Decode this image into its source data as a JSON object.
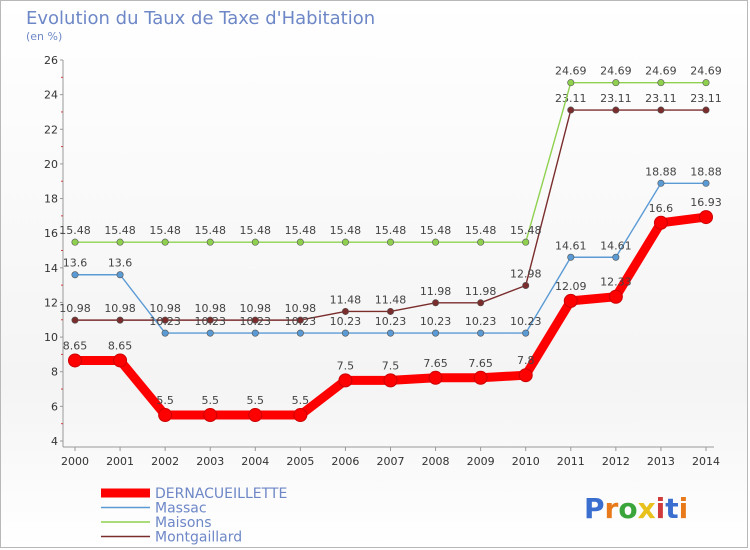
{
  "header": {
    "title": "Evolution du Taux de Taxe d'Habitation",
    "subtitle": "(en %)"
  },
  "logo": {
    "letters": [
      {
        "char": "P",
        "color": "#3a6fd0"
      },
      {
        "char": "r",
        "color": "#e87a1c"
      },
      {
        "char": "o",
        "color": "#3aa53a"
      },
      {
        "char": "x",
        "color": "#e8c11c"
      },
      {
        "char": "i",
        "color": "#d03a3a"
      },
      {
        "char": "t",
        "color": "#3a6fd0"
      },
      {
        "char": "i",
        "color": "#e87a1c"
      }
    ]
  },
  "chart_data": {
    "type": "line",
    "x": [
      "2000",
      "2001",
      "2002",
      "2003",
      "2004",
      "2005",
      "2006",
      "2007",
      "2008",
      "2009",
      "2010",
      "2011",
      "2012",
      "2013",
      "2014"
    ],
    "ylim": [
      4,
      26
    ],
    "yticks": [
      4,
      6,
      8,
      10,
      12,
      14,
      16,
      18,
      20,
      22,
      24,
      26
    ],
    "grid": false,
    "legend_position": "bottom-left",
    "series": [
      {
        "name": "DERNACUEILLETTE",
        "color": "#ff0000",
        "values": [
          8.65,
          8.65,
          5.5,
          5.5,
          5.5,
          5.5,
          7.5,
          7.5,
          7.65,
          7.65,
          7.8,
          12.09,
          12.33,
          16.6,
          16.93
        ],
        "labels": [
          "8.65",
          "8.65",
          "5.5",
          "5.5",
          "5.5",
          "5.5",
          "7.5",
          "7.5",
          "7.65",
          "7.65",
          "7.8",
          "12.09",
          "12.33",
          "16.6",
          "16.93"
        ]
      },
      {
        "name": "Massac",
        "color": "#5b9bd5",
        "values": [
          13.6,
          13.6,
          10.23,
          10.23,
          10.23,
          10.23,
          10.23,
          10.23,
          10.23,
          10.23,
          10.23,
          14.61,
          14.61,
          18.88,
          18.88
        ],
        "labels": [
          "13.6",
          "13.6",
          "10.23",
          "10.23",
          "10.23",
          "10.23",
          "10.23",
          "10.23",
          "10.23",
          "10.23",
          "10.23",
          "14.61",
          "14.61",
          "18.88",
          "18.88"
        ]
      },
      {
        "name": "Maisons",
        "color": "#8fd14f",
        "values": [
          15.48,
          15.48,
          15.48,
          15.48,
          15.48,
          15.48,
          15.48,
          15.48,
          15.48,
          15.48,
          15.48,
          24.69,
          24.69,
          24.69,
          24.69
        ],
        "labels": [
          "15.48",
          "15.48",
          "15.48",
          "15.48",
          "15.48",
          "15.48",
          "15.48",
          "15.48",
          "15.48",
          "15.48",
          "15.48",
          "24.69",
          "24.69",
          "24.69",
          "24.69"
        ]
      },
      {
        "name": "Montgaillard",
        "color": "#7b2d2d",
        "values": [
          10.98,
          10.98,
          10.98,
          10.98,
          10.98,
          10.98,
          11.48,
          11.48,
          11.98,
          11.98,
          12.98,
          23.11,
          23.11,
          23.11,
          23.11
        ],
        "labels": [
          "10.98",
          "10.98",
          "10.98",
          "10.98",
          "10.98",
          "10.98",
          "11.48",
          "11.48",
          "11.98",
          "11.98",
          "12.98",
          "23.11",
          "23.11",
          "23.11",
          "23.11"
        ]
      }
    ]
  }
}
